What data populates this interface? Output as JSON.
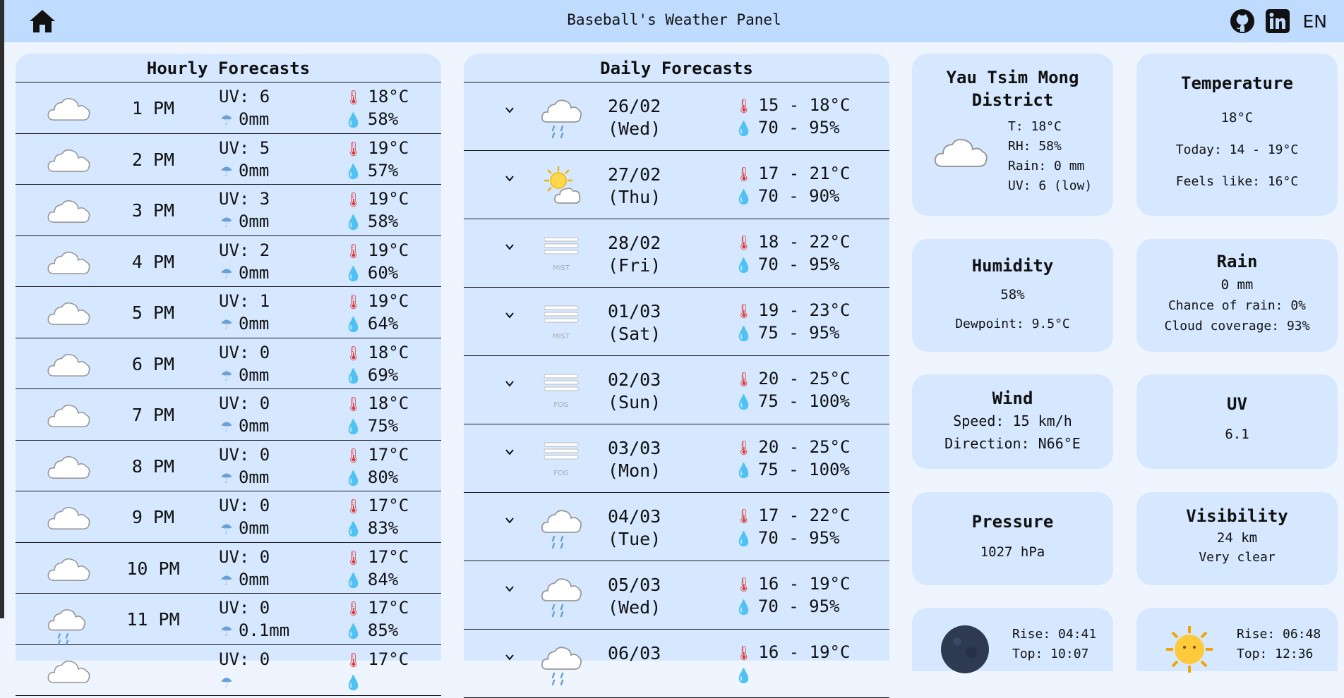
{
  "header": {
    "title": "Baseball's Weather Panel",
    "lang": "EN"
  },
  "hourly": {
    "title": "Hourly Forecasts",
    "rows": [
      {
        "time": "1 PM",
        "uv": "UV: 6",
        "rain": "0mm",
        "temp": "18°C",
        "hum": "58%",
        "icon": "cloudy-icon"
      },
      {
        "time": "2 PM",
        "uv": "UV: 5",
        "rain": "0mm",
        "temp": "19°C",
        "hum": "57%",
        "icon": "cloudy-icon"
      },
      {
        "time": "3 PM",
        "uv": "UV: 3",
        "rain": "0mm",
        "temp": "19°C",
        "hum": "58%",
        "icon": "cloudy-icon"
      },
      {
        "time": "4 PM",
        "uv": "UV: 2",
        "rain": "0mm",
        "temp": "19°C",
        "hum": "60%",
        "icon": "cloudy-icon"
      },
      {
        "time": "5 PM",
        "uv": "UV: 1",
        "rain": "0mm",
        "temp": "19°C",
        "hum": "64%",
        "icon": "cloudy-icon"
      },
      {
        "time": "6 PM",
        "uv": "UV: 0",
        "rain": "0mm",
        "temp": "18°C",
        "hum": "69%",
        "icon": "cloudy-icon"
      },
      {
        "time": "7 PM",
        "uv": "UV: 0",
        "rain": "0mm",
        "temp": "18°C",
        "hum": "75%",
        "icon": "cloudy-icon"
      },
      {
        "time": "8 PM",
        "uv": "UV: 0",
        "rain": "0mm",
        "temp": "17°C",
        "hum": "80%",
        "icon": "cloudy-icon"
      },
      {
        "time": "9 PM",
        "uv": "UV: 0",
        "rain": "0mm",
        "temp": "17°C",
        "hum": "83%",
        "icon": "cloudy-icon"
      },
      {
        "time": "10 PM",
        "uv": "UV: 0",
        "rain": "0mm",
        "temp": "17°C",
        "hum": "84%",
        "icon": "cloudy-icon"
      },
      {
        "time": "11 PM",
        "uv": "UV: 0",
        "rain": "0.1mm",
        "temp": "17°C",
        "hum": "85%",
        "icon": "rain-cloud-icon"
      },
      {
        "time": "",
        "uv": "UV: 0",
        "rain": "",
        "temp": "17°C",
        "hum": "",
        "icon": "cloudy-icon"
      }
    ]
  },
  "daily": {
    "title": "Daily Forecasts",
    "rows": [
      {
        "date": "26/02",
        "day": "(Wed)",
        "temp": "15 - 18°C",
        "hum": "70 - 95%",
        "icon": "rain-cloud-icon"
      },
      {
        "date": "27/02",
        "day": "(Thu)",
        "temp": "17 - 21°C",
        "hum": "70 - 90%",
        "icon": "sun-cloud-icon"
      },
      {
        "date": "28/02",
        "day": "(Fri)",
        "temp": "18 - 22°C",
        "hum": "70 - 95%",
        "icon": "mist-icon",
        "icon_label": "MIST"
      },
      {
        "date": "01/03",
        "day": "(Sat)",
        "temp": "19 - 23°C",
        "hum": "75 - 95%",
        "icon": "mist-icon",
        "icon_label": "MIST"
      },
      {
        "date": "02/03",
        "day": "(Sun)",
        "temp": "20 - 25°C",
        "hum": "75 - 100%",
        "icon": "fog-icon",
        "icon_label": "FOG"
      },
      {
        "date": "03/03",
        "day": "(Mon)",
        "temp": "20 - 25°C",
        "hum": "75 - 100%",
        "icon": "fog-icon",
        "icon_label": "FOG"
      },
      {
        "date": "04/03",
        "day": "(Tue)",
        "temp": "17 - 22°C",
        "hum": "70 - 95%",
        "icon": "rain-cloud-icon"
      },
      {
        "date": "05/03",
        "day": "(Wed)",
        "temp": "16 - 19°C",
        "hum": "70 - 95%",
        "icon": "rain-cloud-icon"
      },
      {
        "date": "06/03",
        "day": "",
        "temp": "16 - 19°C",
        "hum": "",
        "icon": "rain-cloud-icon"
      }
    ]
  },
  "location": {
    "name_line1": "Yau Tsim Mong",
    "name_line2": "District",
    "t": "T: 18°C",
    "rh": "RH: 58%",
    "rain": "Rain: 0 mm",
    "uv": "UV: 6 (low)"
  },
  "temperature": {
    "title": "Temperature",
    "value": "18°C",
    "today": "Today: 14 - 19°C",
    "feels": "Feels like: 16°C"
  },
  "humidity": {
    "title": "Humidity",
    "value": "58%",
    "dewpoint": "Dewpoint: 9.5°C"
  },
  "rain_card": {
    "title": "Rain",
    "value": "0 mm",
    "chance": "Chance of rain: 0%",
    "cloud": "Cloud coverage: 93%"
  },
  "wind": {
    "title": "Wind",
    "speed": "Speed: 15 km/h",
    "direction": "Direction: N66°E"
  },
  "uv_card": {
    "title": "UV",
    "value": "6.1"
  },
  "pressure": {
    "title": "Pressure",
    "value": "1027 hPa"
  },
  "visibility": {
    "title": "Visibility",
    "value": "24 km",
    "desc": "Very clear"
  },
  "moon": {
    "rise": "Rise: 04:41",
    "top": "Top: 10:07"
  },
  "sun": {
    "rise": "Rise: 06:48",
    "top": "Top: 12:36"
  },
  "colors": {
    "header_bg": "#bfdcff",
    "card_bg": "#d6e8ff",
    "page_bg": "#eef5ff"
  }
}
